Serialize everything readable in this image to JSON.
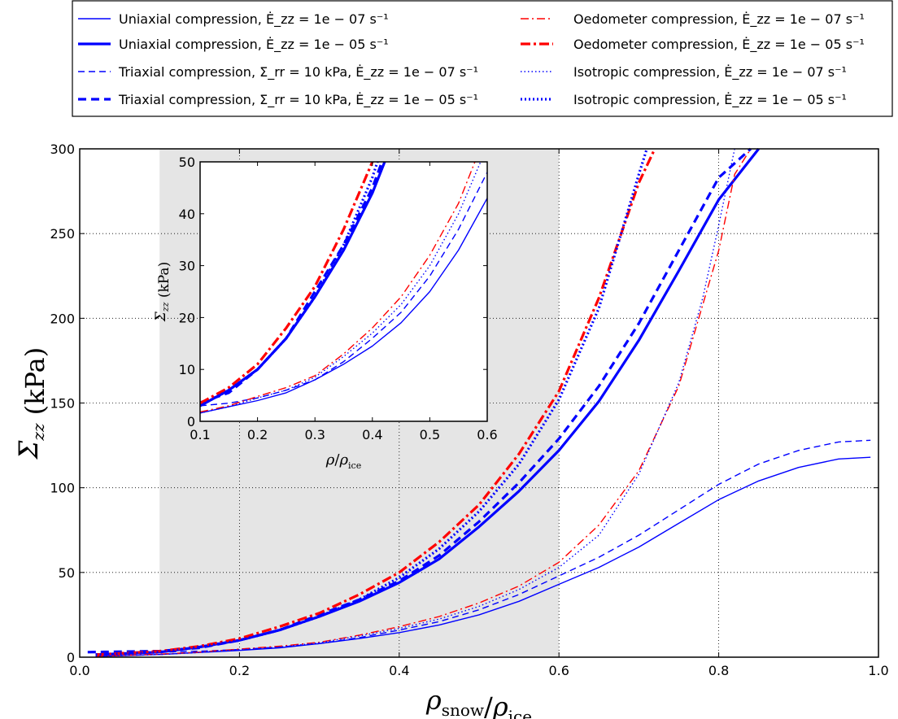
{
  "chart_data": {
    "type": "line",
    "xlabel": "ρ_snow/ρ_ice",
    "ylabel": "Σ_zz (kPa)",
    "xlim": [
      0.0,
      1.0
    ],
    "ylim": [
      0,
      300
    ],
    "x_ticks": [
      "0.0",
      "0.2",
      "0.4",
      "0.6",
      "0.8",
      "1.0"
    ],
    "y_ticks": [
      "0",
      "50",
      "100",
      "150",
      "200",
      "250",
      "300"
    ],
    "grid": true,
    "shaded_region": [
      0.1,
      0.6
    ],
    "legend_position": "top (outside, two columns)",
    "series": [
      {
        "name": "Uniaxial compression, Ė_zz = 1e − 07 s⁻¹",
        "color": "#0000ff",
        "style": "solid",
        "width": 1.4,
        "x": [
          0.02,
          0.05,
          0.1,
          0.15,
          0.2,
          0.25,
          0.3,
          0.35,
          0.4,
          0.45,
          0.5,
          0.55,
          0.6,
          0.65,
          0.7,
          0.75,
          0.8,
          0.85,
          0.9,
          0.95,
          0.99
        ],
        "y": [
          0.5,
          0.8,
          1.6,
          2.8,
          4,
          5.5,
          8,
          11,
          14.5,
          19,
          25,
          33,
          43,
          53,
          65,
          79,
          93,
          104,
          112,
          117,
          118
        ]
      },
      {
        "name": "Uniaxial compression, Ė_zz = 1e − 05 s⁻¹",
        "color": "#0000ff",
        "style": "solid",
        "width": 3.2,
        "x": [
          0.02,
          0.1,
          0.15,
          0.2,
          0.25,
          0.3,
          0.35,
          0.4,
          0.45,
          0.5,
          0.55,
          0.6,
          0.65,
          0.7,
          0.75,
          0.8,
          0.85
        ],
        "y": [
          1.5,
          3,
          6,
          10,
          16,
          24,
          33,
          44,
          58,
          77,
          98,
          122,
          151,
          187,
          228,
          270,
          300
        ]
      },
      {
        "name": "Triaxial compression, Σ_rr = 10 kPa, Ė_zz = 1e − 07 s⁻¹",
        "color": "#0000ff",
        "style": "dashed",
        "width": 1.4,
        "x": [
          0.02,
          0.1,
          0.15,
          0.2,
          0.25,
          0.3,
          0.35,
          0.4,
          0.45,
          0.5,
          0.55,
          0.6,
          0.65,
          0.7,
          0.75,
          0.8,
          0.85,
          0.9,
          0.95,
          0.99
        ],
        "y": [
          2,
          3,
          3.5,
          4.5,
          6,
          8,
          11.5,
          16,
          21,
          28,
          37,
          48,
          59,
          72,
          87,
          102,
          114,
          122,
          127,
          128
        ]
      },
      {
        "name": "Triaxial compression, Σ_rr = 10 kPa, Ė_zz = 1e − 05 s⁻¹",
        "color": "#0000ff",
        "style": "dashed",
        "width": 3.2,
        "x": [
          0.01,
          0.1,
          0.15,
          0.2,
          0.25,
          0.3,
          0.35,
          0.4,
          0.45,
          0.5,
          0.55,
          0.6,
          0.65,
          0.7,
          0.75,
          0.8,
          0.84
        ],
        "y": [
          3,
          3.6,
          5.5,
          10,
          16,
          25,
          34,
          45,
          60,
          80,
          103,
          129,
          160,
          197,
          240,
          283,
          300
        ]
      },
      {
        "name": "Oedometer compression, Ė_zz = 1e − 07 s⁻¹",
        "color": "#ff0000",
        "style": "dashdot",
        "width": 1.4,
        "x": [
          0.02,
          0.1,
          0.15,
          0.2,
          0.25,
          0.3,
          0.35,
          0.4,
          0.45,
          0.5,
          0.55,
          0.6,
          0.65,
          0.7,
          0.75,
          0.8,
          0.82,
          0.84
        ],
        "y": [
          0.5,
          1.8,
          3,
          4.8,
          6.5,
          8.8,
          13,
          18,
          24,
          32,
          42,
          56,
          78,
          110,
          160,
          240,
          285,
          300
        ]
      },
      {
        "name": "Oedometer compression, Ė_zz = 1e − 05 s⁻¹",
        "color": "#ff0000",
        "style": "dashdot",
        "width": 3.2,
        "x": [
          0.02,
          0.1,
          0.15,
          0.2,
          0.25,
          0.3,
          0.35,
          0.4,
          0.45,
          0.5,
          0.55,
          0.6,
          0.65,
          0.7,
          0.72
        ],
        "y": [
          1.5,
          3.5,
          6.5,
          11,
          18,
          26,
          37,
          50,
          68,
          90,
          120,
          157,
          212,
          280,
          300
        ]
      },
      {
        "name": "Isotropic compression, Ė_zz = 1e − 07 s⁻¹",
        "color": "#0000ff",
        "style": "dotted",
        "width": 1.4,
        "x": [
          0.02,
          0.1,
          0.15,
          0.2,
          0.25,
          0.3,
          0.35,
          0.4,
          0.45,
          0.5,
          0.55,
          0.6,
          0.65,
          0.7,
          0.75,
          0.78,
          0.8,
          0.82
        ],
        "y": [
          0.5,
          1.6,
          2.8,
          4.5,
          6,
          8.5,
          12.5,
          17,
          22.5,
          30,
          40,
          53,
          72,
          108,
          162,
          212,
          255,
          300
        ]
      },
      {
        "name": "Isotropic compression, Ė_zz = 1e − 05 s⁻¹",
        "color": "#0000ff",
        "style": "dotted",
        "width": 3.2,
        "x": [
          0.02,
          0.1,
          0.15,
          0.2,
          0.25,
          0.3,
          0.35,
          0.4,
          0.45,
          0.5,
          0.55,
          0.6,
          0.65,
          0.7,
          0.71
        ],
        "y": [
          1.5,
          3,
          6,
          10,
          16,
          24,
          34,
          47,
          64,
          86,
          114,
          152,
          206,
          285,
          300
        ]
      }
    ],
    "inset": {
      "xlabel": "ρ/ρ_ice",
      "ylabel": "Σ_zz (kPa)",
      "xlim": [
        0.1,
        0.6
      ],
      "ylim": [
        0,
        50
      ],
      "x_ticks": [
        "0.1",
        "0.2",
        "0.3",
        "0.4",
        "0.5",
        "0.6"
      ],
      "y_ticks": [
        "0",
        "10",
        "20",
        "30",
        "40",
        "50"
      ],
      "background": "#ffffff"
    }
  }
}
